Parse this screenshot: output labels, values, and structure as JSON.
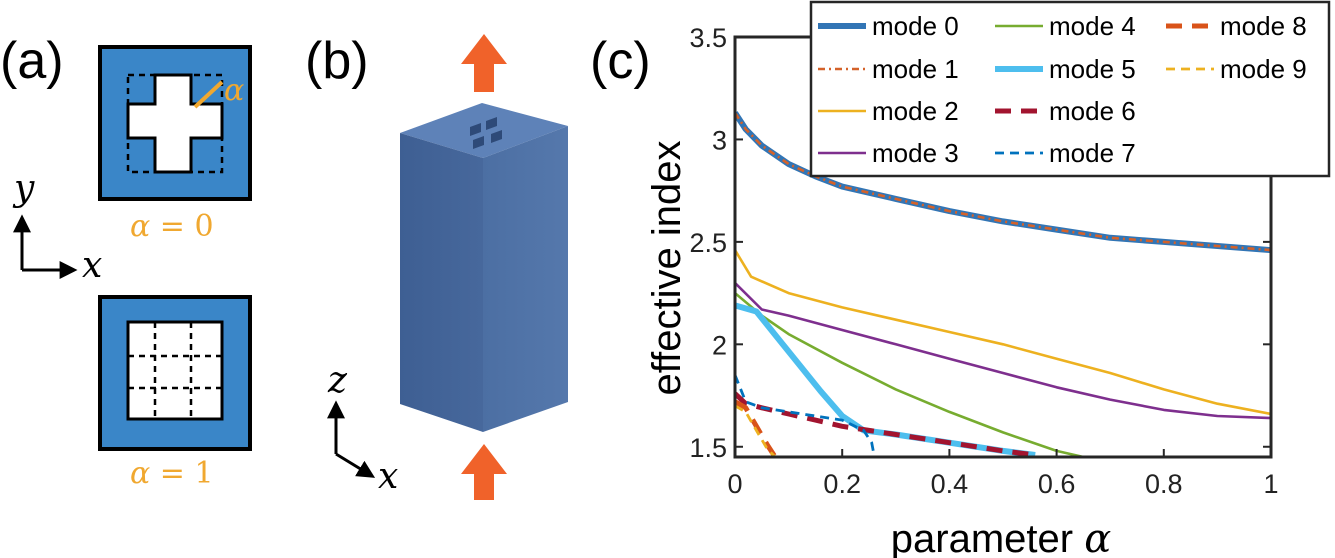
{
  "panel_a": {
    "label": "(a)",
    "top_caption_sym": "α",
    "top_caption_val": " = 0",
    "bottom_caption_sym": "α",
    "bottom_caption_val": " = 1",
    "alpha_marker": "α",
    "axis_y": "y",
    "axis_x": "x",
    "colors": {
      "cladding": "#3A86C8",
      "accent": "#F0A830"
    }
  },
  "panel_b": {
    "label": "(b)",
    "axis_z": "z",
    "axis_x": "x",
    "colors": {
      "arrow": "#F0622A",
      "pillar": "#4A6FA5"
    }
  },
  "chart_data": {
    "type": "line",
    "panel_label": "(c)",
    "xlabel_text": "parameter ",
    "xlabel_symbol": "α",
    "ylabel": "effective index",
    "xlim": [
      0,
      1
    ],
    "ylim": [
      1.45,
      3.5
    ],
    "xticks": [
      0,
      0.2,
      0.4,
      0.6,
      0.8,
      1
    ],
    "xtick_labels": [
      "0",
      "0.2",
      "0.4",
      "0.6",
      "0.8",
      "1"
    ],
    "yticks": [
      1.5,
      2,
      2.5,
      3,
      3.5
    ],
    "ytick_labels": [
      "1.5",
      "2",
      "2.5",
      "3",
      "3.5"
    ],
    "grid": false,
    "legend_placement": "top-right",
    "series": [
      {
        "name": "mode 0",
        "color": "#3275B5",
        "style": "solid-thick",
        "x": [
          0,
          0.02,
          0.05,
          0.1,
          0.15,
          0.2,
          0.3,
          0.4,
          0.5,
          0.6,
          0.7,
          0.8,
          0.9,
          1.0
        ],
        "y": [
          3.13,
          3.05,
          2.97,
          2.88,
          2.82,
          2.77,
          2.71,
          2.65,
          2.6,
          2.56,
          2.52,
          2.5,
          2.48,
          2.46
        ]
      },
      {
        "name": "mode 1",
        "color": "#D4622A",
        "style": "dashdot",
        "x": [
          0,
          0.02,
          0.05,
          0.1,
          0.15,
          0.2,
          0.3,
          0.4,
          0.5,
          0.6,
          0.7,
          0.8,
          0.9,
          1.0
        ],
        "y": [
          3.13,
          3.05,
          2.97,
          2.88,
          2.82,
          2.77,
          2.71,
          2.65,
          2.6,
          2.56,
          2.52,
          2.5,
          2.48,
          2.46
        ]
      },
      {
        "name": "mode 2",
        "color": "#EDB120",
        "style": "solid",
        "x": [
          0,
          0.03,
          0.1,
          0.2,
          0.3,
          0.4,
          0.5,
          0.6,
          0.7,
          0.8,
          0.9,
          1.0
        ],
        "y": [
          2.46,
          2.33,
          2.25,
          2.18,
          2.12,
          2.06,
          2.0,
          1.93,
          1.86,
          1.78,
          1.71,
          1.66
        ]
      },
      {
        "name": "mode 3",
        "color": "#7E2F8E",
        "style": "solid",
        "x": [
          0,
          0.05,
          0.1,
          0.2,
          0.3,
          0.4,
          0.5,
          0.6,
          0.7,
          0.8,
          0.9,
          1.0
        ],
        "y": [
          2.3,
          2.17,
          2.14,
          2.07,
          2.0,
          1.93,
          1.86,
          1.79,
          1.73,
          1.68,
          1.65,
          1.64
        ]
      },
      {
        "name": "mode 4",
        "color": "#77AC30",
        "style": "solid",
        "x": [
          0,
          0.05,
          0.1,
          0.2,
          0.3,
          0.4,
          0.5,
          0.6,
          0.65
        ],
        "y": [
          2.25,
          2.14,
          2.05,
          1.91,
          1.78,
          1.67,
          1.57,
          1.48,
          1.45
        ]
      },
      {
        "name": "mode 5",
        "color": "#4DBEEE",
        "style": "solid-thick",
        "x": [
          0,
          0.04,
          0.08,
          0.12,
          0.16,
          0.2,
          0.24,
          0.3,
          0.4,
          0.5,
          0.56
        ],
        "y": [
          2.19,
          2.16,
          2.03,
          1.9,
          1.77,
          1.65,
          1.58,
          1.56,
          1.52,
          1.48,
          1.46
        ]
      },
      {
        "name": "mode 6",
        "color": "#A2142F",
        "style": "dashed-thick",
        "x": [
          0,
          0.02,
          0.05,
          0.1,
          0.15,
          0.2,
          0.3,
          0.4,
          0.5,
          0.56
        ],
        "y": [
          1.76,
          1.71,
          1.69,
          1.66,
          1.63,
          1.6,
          1.56,
          1.52,
          1.48,
          1.46
        ]
      },
      {
        "name": "mode 7",
        "color": "#0072BD",
        "style": "dashed",
        "x": [
          0,
          0.02,
          0.05,
          0.1,
          0.15,
          0.2,
          0.24,
          0.255,
          0.26
        ],
        "y": [
          1.85,
          1.72,
          1.69,
          1.67,
          1.65,
          1.63,
          1.58,
          1.52,
          1.45
        ]
      },
      {
        "name": "mode 8",
        "color": "#D95319",
        "style": "dashed-thick",
        "x": [
          0,
          0.02,
          0.04,
          0.06,
          0.075
        ],
        "y": [
          1.72,
          1.69,
          1.6,
          1.51,
          1.45
        ]
      },
      {
        "name": "mode 9",
        "color": "#EDB120",
        "style": "dashed",
        "x": [
          0,
          0.02,
          0.04,
          0.06,
          0.075
        ],
        "y": [
          1.7,
          1.67,
          1.58,
          1.49,
          1.45
        ]
      }
    ]
  }
}
